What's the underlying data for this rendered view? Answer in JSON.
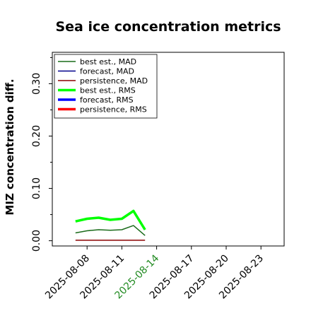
{
  "chart_data": {
    "type": "line",
    "title": "Sea ice concentration metrics",
    "xlabel": "",
    "ylabel": "MIZ concentration diff.",
    "ylim": [
      -0.01,
      0.36
    ],
    "xlim": [
      "2025-08-05",
      "2025-08-25"
    ],
    "yticks": [
      0.0,
      0.1,
      0.2,
      0.3
    ],
    "ytick_labels": [
      "0.00",
      "0.10",
      "0.20",
      "0.30"
    ],
    "xticks": [
      "2025-08-08",
      "2025-08-11",
      "2025-08-14",
      "2025-08-17",
      "2025-08-20",
      "2025-08-23"
    ],
    "xtick_labels": [
      "2025-08-08",
      "2025-08-11",
      "2025-08-14",
      "2025-08-17",
      "2025-08-20",
      "2025-08-23"
    ],
    "highlighted_xtick": "2025-08-14",
    "highlight_color": "#228b22",
    "minor_yticks": [
      0.05,
      0.15,
      0.25,
      0.35
    ],
    "grid": false,
    "legend_position": "upper-left",
    "x": [
      "2025-08-07",
      "2025-08-08",
      "2025-08-09",
      "2025-08-10",
      "2025-08-11",
      "2025-08-12",
      "2025-08-13"
    ],
    "series": [
      {
        "name": "best est., MAD",
        "color": "#1a6b1a",
        "width": "thin",
        "values": [
          0.015,
          0.019,
          0.021,
          0.02,
          0.021,
          0.029,
          0.01
        ]
      },
      {
        "name": "forecast,  MAD",
        "color": "#00008b",
        "width": "thin",
        "values": [
          null,
          null,
          null,
          null,
          null,
          null,
          null
        ]
      },
      {
        "name": "persistence, MAD",
        "color": "#8b0000",
        "width": "thin",
        "values": [
          0.001,
          0.001,
          0.001,
          0.001,
          0.001,
          0.001,
          0.001
        ]
      },
      {
        "name": "best est., RMS",
        "color": "#00ff00",
        "width": "thick",
        "values": [
          0.037,
          0.042,
          0.044,
          0.04,
          0.042,
          0.057,
          0.021
        ]
      },
      {
        "name": "forecast,  RMS",
        "color": "#0000ff",
        "width": "thick",
        "values": [
          null,
          null,
          null,
          null,
          null,
          null,
          null
        ]
      },
      {
        "name": "persistence, RMS",
        "color": "#ff0000",
        "width": "thick",
        "values": [
          null,
          null,
          null,
          null,
          null,
          null,
          null
        ]
      }
    ]
  }
}
